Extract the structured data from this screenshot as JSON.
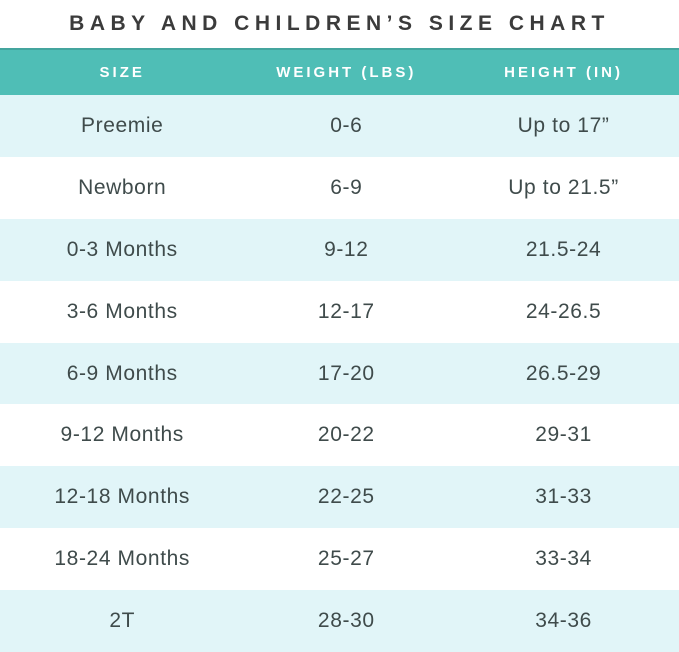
{
  "page": {
    "title": "BABY AND CHILDREN’S SIZE CHART"
  },
  "colors": {
    "header_bg": "#4FBEB6",
    "header_text": "#FFFFFF",
    "row_alt_bg": "#E1F5F8",
    "cell_text": "#3F4B4B",
    "title_text": "#3B3B3B"
  },
  "chart_data": {
    "type": "table",
    "title": "BABY AND CHILDREN’S SIZE CHART",
    "columns": [
      "SIZE",
      "WEIGHT (LBS)",
      "HEIGHT (IN)"
    ],
    "rows": [
      [
        "Preemie",
        "0-6",
        "Up to 17”"
      ],
      [
        "Newborn",
        "6-9",
        "Up to 21.5”"
      ],
      [
        "0-3 Months",
        "9-12",
        "21.5-24"
      ],
      [
        "3-6 Months",
        "12-17",
        "24-26.5"
      ],
      [
        "6-9 Months",
        "17-20",
        "26.5-29"
      ],
      [
        "9-12 Months",
        "20-22",
        "29-31"
      ],
      [
        "12-18 Months",
        "22-25",
        "31-33"
      ],
      [
        "18-24 Months",
        "25-27",
        "33-34"
      ],
      [
        "2T",
        "28-30",
        "34-36"
      ]
    ],
    "layout": {
      "header_position": "top",
      "row_striping": "odd-rows-light-blue",
      "alignment": "center"
    }
  }
}
